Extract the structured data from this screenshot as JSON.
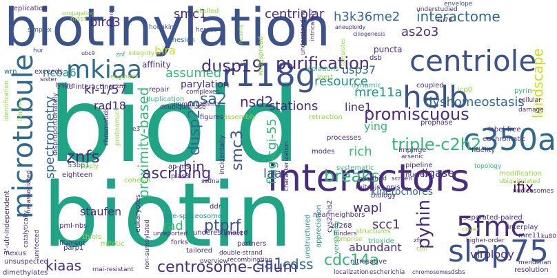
{
  "cloud": {
    "background": "#ffffff",
    "palette": {
      "navy": "#3b528b",
      "indigo": "#472d7b",
      "deep": "#440154",
      "teal": "#21918c",
      "blue": "#31688e",
      "green": "#35b779",
      "sea": "#20a486",
      "lime": "#90d743",
      "yellow": "#fde725",
      "lemon": "#c8e020"
    },
    "words": [
      {
        "text": "biotinylation",
        "c": "navy"
      },
      {
        "text": "bioid",
        "c": "sea"
      },
      {
        "text": "biotin",
        "c": "sea"
      },
      {
        "text": "interactors",
        "c": "indigo"
      },
      {
        "text": "microtubule",
        "c": "blue"
      },
      {
        "text": "centriole",
        "c": "navy"
      },
      {
        "text": "mkiaa",
        "c": "blue"
      },
      {
        "text": "r118g",
        "c": "navy"
      },
      {
        "text": "helb",
        "c": "navy"
      },
      {
        "text": "slap75",
        "c": "navy"
      },
      {
        "text": "c350a",
        "c": "blue"
      },
      {
        "text": "5fmc",
        "c": "indigo"
      },
      {
        "text": "landscape",
        "c": "lemon"
      },
      {
        "text": "purification",
        "c": "indigo"
      },
      {
        "text": "centrosome-cilium",
        "c": "indigo"
      },
      {
        "text": "proximity-based",
        "c": "green"
      },
      {
        "text": "spectrometry",
        "c": "blue"
      },
      {
        "text": "promiscuous",
        "c": "indigo"
      },
      {
        "text": "triple-c2h2",
        "c": "green"
      },
      {
        "text": "dyshomeostasis",
        "c": "blue"
      },
      {
        "text": "flag-cgi-55",
        "c": "green"
      },
      {
        "text": "pyhin",
        "c": "indigo"
      },
      {
        "text": "ptprf",
        "c": "navy"
      },
      {
        "text": "breaks",
        "c": "green"
      },
      {
        "text": "ascribing",
        "c": "indigo"
      },
      {
        "text": "cdc14a",
        "c": "green"
      },
      {
        "text": "dusp19",
        "c": "indigo"
      },
      {
        "text": "dusp23",
        "c": "blue"
      },
      {
        "text": "smc3",
        "c": "navy"
      },
      {
        "text": "znfs",
        "c": "indigo"
      },
      {
        "text": "kiaas",
        "c": "indigo"
      },
      {
        "text": "sa1",
        "c": "navy"
      },
      {
        "text": "sa2",
        "c": "blue"
      },
      {
        "text": "nsd2",
        "c": "indigo"
      },
      {
        "text": "interactome",
        "c": "blue"
      },
      {
        "text": "h3k36me2",
        "c": "blue"
      },
      {
        "text": "centriolar",
        "c": "indigo"
      },
      {
        "text": "smc1",
        "c": "indigo"
      },
      {
        "text": "birc3",
        "c": "indigo"
      },
      {
        "text": "as2o3",
        "c": "indigo"
      },
      {
        "text": "ncoa6",
        "c": "teal"
      },
      {
        "text": "bira",
        "c": "lemon"
      },
      {
        "text": "assumed",
        "c": "green"
      },
      {
        "text": "ki-1/57",
        "c": "indigo"
      },
      {
        "text": "rad18",
        "c": "indigo"
      },
      {
        "text": "usp37",
        "c": "blue"
      },
      {
        "text": "mre11a",
        "c": "teal"
      },
      {
        "text": "resource",
        "c": "teal"
      },
      {
        "text": "stations",
        "c": "indigo"
      },
      {
        "text": "line1",
        "c": "indigo"
      },
      {
        "text": "rich",
        "c": "green"
      },
      {
        "text": "ying",
        "c": "green"
      },
      {
        "text": "ligase",
        "c": "indigo"
      },
      {
        "text": "ifix",
        "c": "deep"
      },
      {
        "text": "hin",
        "c": "indigo"
      },
      {
        "text": "laa",
        "c": "navy"
      },
      {
        "text": "staufen",
        "c": "indigo"
      },
      {
        "text": "wapl",
        "c": "indigo"
      },
      {
        "text": "scc1",
        "c": "indigo"
      },
      {
        "text": "cdss",
        "c": "blue"
      },
      {
        "text": "abundant",
        "c": "indigo"
      },
      {
        "text": "virology",
        "c": "indigo"
      },
      {
        "text": "rad",
        "c": "green"
      },
      {
        "text": "kinetochores",
        "c": "blue"
      },
      {
        "text": "parylation",
        "c": "indigo"
      },
      {
        "text": "affinity",
        "c": "indigo"
      },
      {
        "text": "cohesion",
        "c": "blue"
      },
      {
        "text": "replication",
        "c": "indigo"
      },
      {
        "text": "stalled",
        "c": "lime"
      },
      {
        "text": "understudied",
        "c": "indigo"
      },
      {
        "text": "envelope",
        "c": "navy"
      },
      {
        "text": "ku70",
        "c": "indigo"
      },
      {
        "text": "puncta",
        "c": "indigo"
      },
      {
        "text": "dsb",
        "c": "indigo"
      },
      {
        "text": "widespread",
        "c": "lime"
      },
      {
        "text": "hodgkin",
        "c": "navy"
      },
      {
        "text": "herpes",
        "c": "navy"
      },
      {
        "text": "simplex",
        "c": "navy"
      },
      {
        "text": "hur",
        "c": "navy"
      },
      {
        "text": "ubc9",
        "c": "indigo"
      },
      {
        "text": "znf",
        "c": "green"
      },
      {
        "text": "exceeds",
        "c": "indigo"
      },
      {
        "text": "wrn",
        "c": "blue"
      },
      {
        "text": "lysine",
        "c": "indigo"
      },
      {
        "text": "ku-interacting",
        "c": "indigo"
      },
      {
        "text": "repair",
        "c": "indigo"
      },
      {
        "text": "duplication",
        "c": "green"
      },
      {
        "text": "deubiquitinase",
        "c": "indigo"
      },
      {
        "text": "immunoaffinity",
        "c": "indigo"
      },
      {
        "text": "figures",
        "c": "indigo"
      },
      {
        "text": "assembly",
        "c": "lime"
      },
      {
        "text": "isolations",
        "c": "green"
      },
      {
        "text": "inert",
        "c": "lime"
      },
      {
        "text": "dynamic",
        "c": "green"
      },
      {
        "text": "coupled",
        "c": "indigo"
      },
      {
        "text": "icp0",
        "c": "lime"
      },
      {
        "text": "pyrin",
        "c": "green"
      },
      {
        "text": "cellular",
        "c": "indigo"
      },
      {
        "text": "damage",
        "c": "indigo"
      },
      {
        "text": "label-free",
        "c": "indigo"
      },
      {
        "text": "euchromatic",
        "c": "indigo"
      },
      {
        "text": "prophase",
        "c": "indigo"
      },
      {
        "text": "retraction",
        "c": "lime"
      },
      {
        "text": "impinge",
        "c": "indigo"
      },
      {
        "text": "arsenic",
        "c": "indigo"
      },
      {
        "text": "pipeline",
        "c": "indigo"
      },
      {
        "text": "nucleoli",
        "c": "indigo"
      },
      {
        "text": "fidelity",
        "c": "indigo"
      },
      {
        "text": "topology",
        "c": "green"
      },
      {
        "text": "modification",
        "c": "lime"
      },
      {
        "text": "ubiquitylated",
        "c": "lime"
      },
      {
        "text": "nucleosomes",
        "c": "indigo"
      },
      {
        "text": "processes",
        "c": "indigo"
      },
      {
        "text": "systematic",
        "c": "green"
      },
      {
        "text": "one-third",
        "c": "indigo"
      },
      {
        "text": "screen",
        "c": "indigo"
      },
      {
        "text": "ppis",
        "c": "indigo"
      },
      {
        "text": "biology",
        "c": "indigo"
      },
      {
        "text": "mitosis",
        "c": "indigo"
      },
      {
        "text": "modes",
        "c": "indigo"
      },
      {
        "text": "53bp1",
        "c": "navy"
      },
      {
        "text": "eighteen",
        "c": "indigo"
      },
      {
        "text": "disproportionately",
        "c": "indigo"
      },
      {
        "text": "chromatids",
        "c": "indigo"
      },
      {
        "text": "proteomics",
        "c": "lime"
      },
      {
        "text": "cohesin",
        "c": "lime"
      },
      {
        "text": "ap-ms",
        "c": "indigo"
      },
      {
        "text": "pias3",
        "c": "indigo"
      },
      {
        "text": "ssdna",
        "c": "indigo"
      },
      {
        "text": "incidentally",
        "c": "indigo"
      },
      {
        "text": "ddr",
        "c": "indigo"
      },
      {
        "text": "pre-spliceosome",
        "c": "teal"
      },
      {
        "text": "underestimated",
        "c": "indigo"
      },
      {
        "text": "zif268",
        "c": "indigo"
      },
      {
        "text": "unstructured",
        "c": "teal"
      },
      {
        "text": "structures",
        "c": "lime"
      },
      {
        "text": "near-neighbors",
        "c": "indigo"
      },
      {
        "text": "trioxide",
        "c": "green"
      },
      {
        "text": "separated-paired",
        "c": "indigo"
      },
      {
        "text": "interplay",
        "c": "indigo"
      },
      {
        "text": "mre11",
        "c": "indigo"
      },
      {
        "text": "ku80",
        "c": "indigo"
      },
      {
        "text": "higher-order",
        "c": "indigo"
      },
      {
        "text": "mendelian",
        "c": "indigo"
      },
      {
        "text": "resolution",
        "c": "indigo"
      },
      {
        "text": "hinders",
        "c": "indigo"
      },
      {
        "text": "comprise",
        "c": "lime"
      },
      {
        "text": "cover",
        "c": "lime"
      },
      {
        "text": "appreciation",
        "c": "teal"
      },
      {
        "text": "cys2-his2",
        "c": "indigo"
      },
      {
        "text": "versatility",
        "c": "green"
      },
      {
        "text": "nitrosative",
        "c": "indigo"
      },
      {
        "text": "localization",
        "c": "indigo"
      },
      {
        "text": "escherichia",
        "c": "indigo"
      },
      {
        "text": "chromosomes",
        "c": "indigo"
      },
      {
        "text": "dsbs",
        "c": "indigo"
      },
      {
        "text": "zfs",
        "c": "indigo"
      },
      {
        "text": "coli",
        "c": "lime"
      },
      {
        "text": "pml-nbs",
        "c": "indigo"
      },
      {
        "text": "parp1",
        "c": "indigo"
      },
      {
        "text": "thiols",
        "c": "lime"
      },
      {
        "text": "mitotic",
        "c": "lime"
      },
      {
        "text": "eukaryotes",
        "c": "indigo"
      },
      {
        "text": "non-sumoylated",
        "c": "indigo"
      },
      {
        "text": "unreported",
        "c": "indigo"
      },
      {
        "text": "forks",
        "c": "indigo"
      },
      {
        "text": "tailored",
        "c": "indigo"
      },
      {
        "text": "partners",
        "c": "indigo"
      },
      {
        "text": "double-strand",
        "c": "indigo"
      },
      {
        "text": "recombination",
        "c": "indigo"
      },
      {
        "text": "prmt1",
        "c": "indigo"
      },
      {
        "text": "rnai-resistant",
        "c": "indigo"
      },
      {
        "text": "overview",
        "c": "indigo"
      },
      {
        "text": "unsuspected",
        "c": "indigo"
      },
      {
        "text": "dimethylates",
        "c": "indigo"
      },
      {
        "text": "nexus",
        "c": "indigo"
      },
      {
        "text": "unifected",
        "c": "indigo"
      },
      {
        "text": "catalytically",
        "c": "indigo"
      },
      {
        "text": "filament",
        "c": "indigo"
      },
      {
        "text": "3'-utr-independent",
        "c": "indigo"
      },
      {
        "text": "ne-associated",
        "c": "indigo"
      },
      {
        "text": "apply",
        "c": "lime"
      },
      {
        "text": "identification",
        "c": "lime"
      },
      {
        "text": "lamin-a",
        "c": "lime"
      },
      {
        "text": "e3",
        "c": "indigo"
      },
      {
        "text": "zn",
        "c": "indigo"
      },
      {
        "text": "complexes",
        "c": "indigo"
      },
      {
        "text": "engineer",
        "c": "lime"
      },
      {
        "text": "integrity",
        "c": "lime"
      },
      {
        "text": "sister",
        "c": "indigo"
      },
      {
        "text": "extent",
        "c": "indigo"
      },
      {
        "text": "conjugating",
        "c": "lime"
      },
      {
        "text": "mass",
        "c": "lime"
      },
      {
        "text": "heavily",
        "c": "lime"
      },
      {
        "text": "understanding",
        "c": "indigo"
      },
      {
        "text": "intricately",
        "c": "indigo"
      },
      {
        "text": "aneuploidy",
        "c": "indigo"
      },
      {
        "text": "ciliogenesis",
        "c": "indigo"
      },
      {
        "text": "templates",
        "c": "lime"
      },
      {
        "text": "characterization",
        "c": "indigo"
      }
    ]
  }
}
